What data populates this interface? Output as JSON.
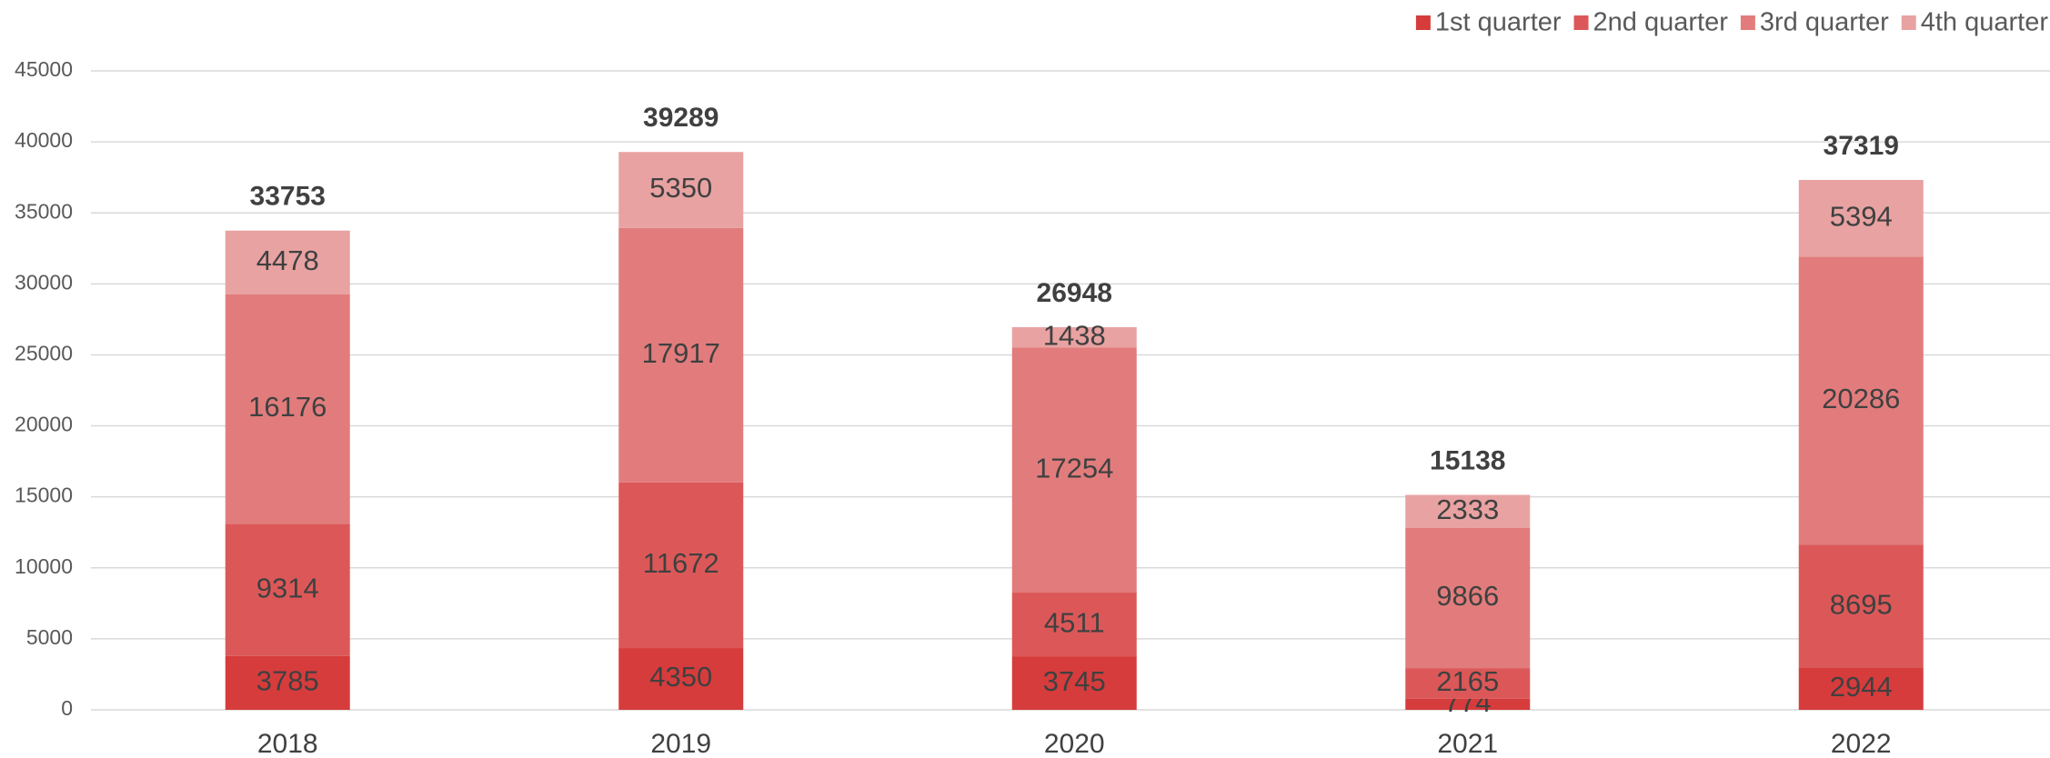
{
  "chart_data": {
    "type": "stacked_bar",
    "categories": [
      "2018",
      "2019",
      "2020",
      "2021",
      "2022"
    ],
    "series": [
      {
        "name": "1st quarter",
        "color": "#d63c3c",
        "values": [
          3785,
          4350,
          3745,
          774,
          2944
        ]
      },
      {
        "name": "2nd quarter",
        "color": "#dc5858",
        "values": [
          9314,
          11672,
          4511,
          2165,
          8695
        ]
      },
      {
        "name": "3rd quarter",
        "color": "#e27c7c",
        "values": [
          16176,
          17917,
          17254,
          9866,
          20286
        ]
      },
      {
        "name": "4th quarter",
        "color": "#e8a2a2",
        "values": [
          4478,
          5350,
          1438,
          2333,
          5394
        ]
      }
    ],
    "totals": [
      33753,
      39289,
      26948,
      15138,
      37319
    ],
    "ylim": [
      0,
      45000
    ],
    "yticks": [
      0,
      5000,
      10000,
      15000,
      20000,
      25000,
      30000,
      35000,
      40000,
      45000
    ],
    "grid": true,
    "legend": "top-right"
  }
}
